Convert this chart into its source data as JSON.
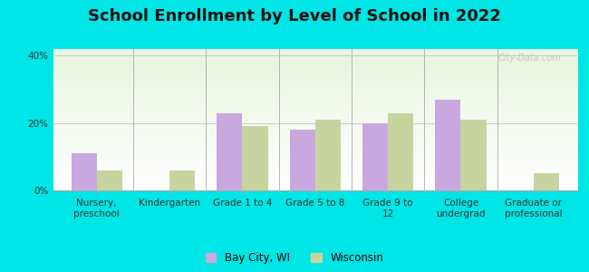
{
  "title": "School Enrollment by Level of School in 2022",
  "categories": [
    "Nursery,\npreschool",
    "Kindergarten",
    "Grade 1 to 4",
    "Grade 5 to 8",
    "Grade 9 to\n12",
    "College\nundergrad",
    "Graduate or\nprofessional"
  ],
  "bay_city": [
    11,
    0,
    23,
    18,
    20,
    27,
    0
  ],
  "wisconsin": [
    6,
    6,
    19,
    21,
    23,
    21,
    5
  ],
  "bar_color_city": "#c9a8e0",
  "bar_color_wi": "#c8d4a0",
  "ylim": [
    0,
    42
  ],
  "ytick_labels": [
    "0%",
    "20%",
    "40%"
  ],
  "ytick_vals": [
    0,
    20,
    40
  ],
  "background_outer": "#00e5e5",
  "watermark": "City-Data.com",
  "legend_city": "Bay City, WI",
  "legend_wi": "Wisconsin",
  "title_fontsize": 13,
  "tick_fontsize": 7.5
}
